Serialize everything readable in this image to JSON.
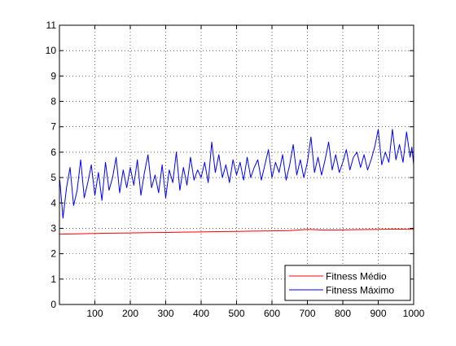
{
  "chart_data": {
    "type": "line",
    "title": "",
    "xlabel": "",
    "ylabel": "",
    "xlim": [
      0,
      1000
    ],
    "ylim": [
      0,
      11
    ],
    "x_ticks": [
      100,
      200,
      300,
      400,
      500,
      600,
      700,
      800,
      900,
      1000
    ],
    "y_ticks": [
      0,
      1,
      2,
      3,
      4,
      5,
      6,
      7,
      8,
      9,
      10,
      11
    ],
    "grid": true,
    "grid_style": "dotted",
    "legend_position": "bottom-right",
    "series": [
      {
        "name": "Fitness Médio",
        "color": "#ff0000",
        "points": [
          [
            1,
            2.77
          ],
          [
            50,
            2.78
          ],
          [
            100,
            2.8
          ],
          [
            150,
            2.81
          ],
          [
            200,
            2.82
          ],
          [
            250,
            2.83
          ],
          [
            300,
            2.84
          ],
          [
            350,
            2.85
          ],
          [
            400,
            2.86
          ],
          [
            450,
            2.87
          ],
          [
            500,
            2.88
          ],
          [
            550,
            2.89
          ],
          [
            600,
            2.9
          ],
          [
            650,
            2.91
          ],
          [
            700,
            2.96
          ],
          [
            750,
            2.93
          ],
          [
            800,
            2.94
          ],
          [
            850,
            2.95
          ],
          [
            900,
            2.96
          ],
          [
            950,
            2.97
          ],
          [
            1000,
            2.96
          ]
        ]
      },
      {
        "name": "Fitness Máximo",
        "color": "#0000ff",
        "points": [
          [
            1,
            4.9
          ],
          [
            10,
            3.4
          ],
          [
            20,
            4.6
          ],
          [
            30,
            5.4
          ],
          [
            40,
            3.9
          ],
          [
            50,
            4.5
          ],
          [
            60,
            5.7
          ],
          [
            70,
            4.2
          ],
          [
            80,
            4.8
          ],
          [
            90,
            5.5
          ],
          [
            100,
            4.3
          ],
          [
            110,
            5.2
          ],
          [
            120,
            4.1
          ],
          [
            130,
            5.6
          ],
          [
            140,
            4.5
          ],
          [
            150,
            5.0
          ],
          [
            160,
            5.8
          ],
          [
            170,
            4.4
          ],
          [
            180,
            5.3
          ],
          [
            190,
            4.6
          ],
          [
            200,
            5.4
          ],
          [
            210,
            4.7
          ],
          [
            220,
            5.7
          ],
          [
            230,
            4.3
          ],
          [
            240,
            5.2
          ],
          [
            250,
            5.9
          ],
          [
            260,
            4.6
          ],
          [
            270,
            5.1
          ],
          [
            280,
            4.4
          ],
          [
            290,
            5.5
          ],
          [
            300,
            4.2
          ],
          [
            310,
            5.3
          ],
          [
            320,
            4.8
          ],
          [
            330,
            6.0
          ],
          [
            340,
            4.5
          ],
          [
            350,
            5.4
          ],
          [
            360,
            4.7
          ],
          [
            370,
            5.8
          ],
          [
            380,
            4.9
          ],
          [
            390,
            5.3
          ],
          [
            400,
            5.0
          ],
          [
            410,
            5.6
          ],
          [
            420,
            4.8
          ],
          [
            430,
            6.4
          ],
          [
            440,
            5.2
          ],
          [
            450,
            5.9
          ],
          [
            460,
            5.0
          ],
          [
            470,
            5.5
          ],
          [
            480,
            4.8
          ],
          [
            490,
            5.7
          ],
          [
            500,
            5.1
          ],
          [
            510,
            5.6
          ],
          [
            520,
            4.9
          ],
          [
            530,
            5.8
          ],
          [
            540,
            5.0
          ],
          [
            550,
            5.4
          ],
          [
            560,
            5.7
          ],
          [
            570,
            4.9
          ],
          [
            580,
            5.5
          ],
          [
            590,
            6.1
          ],
          [
            600,
            5.0
          ],
          [
            610,
            5.6
          ],
          [
            620,
            5.2
          ],
          [
            630,
            5.9
          ],
          [
            640,
            4.9
          ],
          [
            650,
            5.5
          ],
          [
            660,
            6.3
          ],
          [
            670,
            5.1
          ],
          [
            680,
            5.7
          ],
          [
            690,
            5.0
          ],
          [
            700,
            5.6
          ],
          [
            710,
            6.6
          ],
          [
            720,
            5.2
          ],
          [
            730,
            5.8
          ],
          [
            740,
            5.1
          ],
          [
            750,
            5.7
          ],
          [
            760,
            6.4
          ],
          [
            770,
            5.3
          ],
          [
            780,
            5.9
          ],
          [
            790,
            5.2
          ],
          [
            800,
            5.6
          ],
          [
            810,
            6.1
          ],
          [
            820,
            5.3
          ],
          [
            830,
            5.8
          ],
          [
            840,
            6.0
          ],
          [
            850,
            5.4
          ],
          [
            860,
            5.9
          ],
          [
            870,
            5.3
          ],
          [
            880,
            5.7
          ],
          [
            890,
            6.2
          ],
          [
            900,
            6.9
          ],
          [
            910,
            5.5
          ],
          [
            920,
            6.0
          ],
          [
            930,
            5.6
          ],
          [
            940,
            6.9
          ],
          [
            950,
            5.7
          ],
          [
            960,
            6.3
          ],
          [
            970,
            5.6
          ],
          [
            980,
            6.8
          ],
          [
            990,
            5.8
          ],
          [
            995,
            6.2
          ],
          [
            1000,
            5.5
          ]
        ]
      }
    ]
  }
}
